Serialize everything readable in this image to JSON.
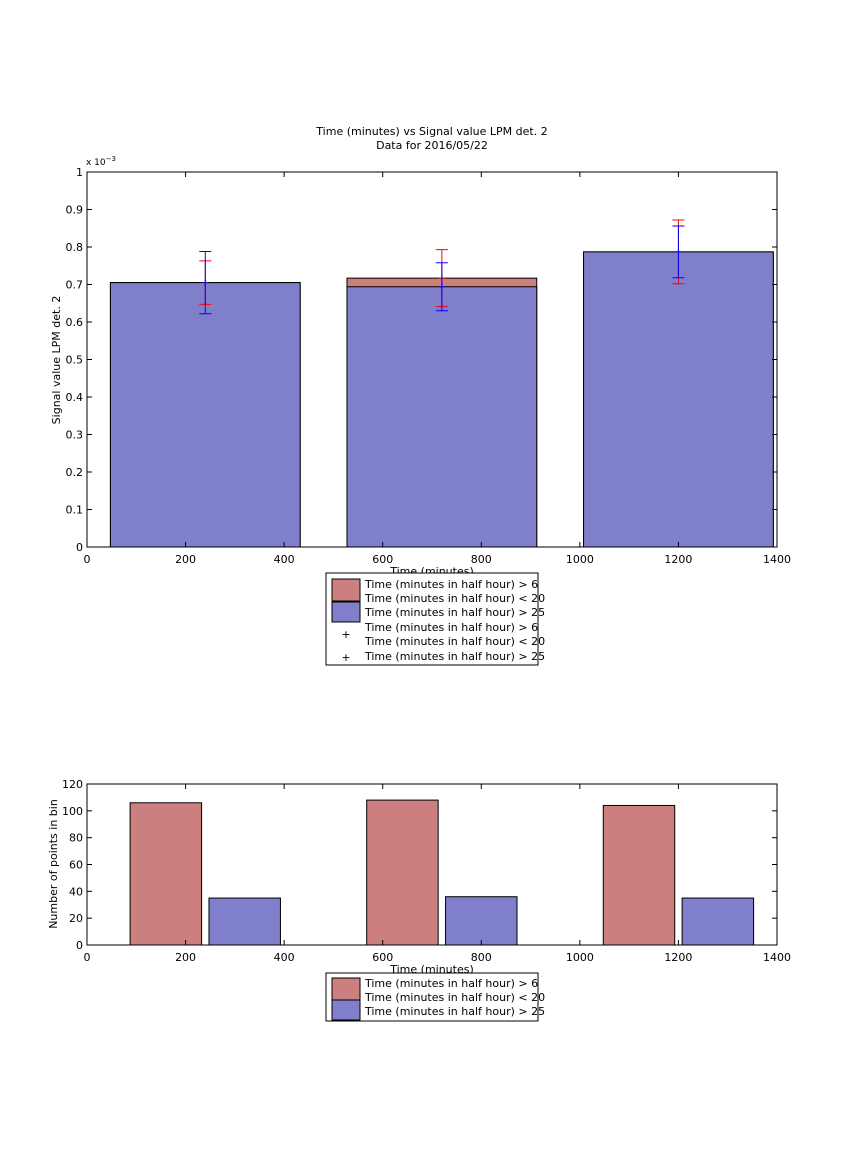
{
  "chart_data": [
    {
      "type": "bar",
      "title": "Time (minutes) vs Signal value LPM det. 2",
      "subtitle": "Data for 2016/05/22",
      "xlabel": "Time (minutes)",
      "ylabel": "Signal value LPM det. 2",
      "y_multiplier": "x 10",
      "y_exponent": "−3",
      "xlim": [
        0,
        1400
      ],
      "ylim": [
        0,
        1
      ],
      "xticks": [
        0,
        200,
        400,
        600,
        800,
        1000,
        1200,
        1400
      ],
      "yticks": [
        0,
        0.1,
        0.2,
        0.3,
        0.4,
        0.5,
        0.6,
        0.7,
        0.8,
        0.9,
        1
      ],
      "grid": false,
      "legend_position": "below",
      "x": [
        240,
        720,
        1200
      ],
      "bin_width": 385,
      "series": [
        {
          "name": "Time (minutes in half hour) > 6\nTime (minutes in half hour) < 20",
          "color": "#cc7f7f",
          "values": [
            0.705,
            0.717,
            0.787
          ],
          "errors": [
            0.058,
            0.076,
            0.085
          ]
        },
        {
          "name": "Time (minutes in half hour) > 25",
          "color": "#7f7fcc",
          "values": [
            0.705,
            0.694,
            0.787
          ],
          "errors": [
            0.083,
            0.064,
            0.069
          ]
        }
      ],
      "errorbar_legend": [
        {
          "name": "Time (minutes in half hour) > 6\nTime (minutes in half hour) < 20",
          "color": "#ff0000",
          "marker": "+"
        },
        {
          "name": "Time (minutes in half hour) > 25",
          "color": "#0000ff",
          "marker": "+"
        }
      ]
    },
    {
      "type": "bar",
      "xlabel": "Time (minutes)",
      "ylabel": "Number of points in bin",
      "xlim": [
        0,
        1400
      ],
      "ylim": [
        0,
        120
      ],
      "xticks": [
        0,
        200,
        400,
        600,
        800,
        1000,
        1200,
        1400
      ],
      "yticks": [
        0,
        20,
        40,
        60,
        80,
        100,
        120
      ],
      "grid": false,
      "legend_position": "below",
      "bin_width": 145,
      "series": [
        {
          "name": "Time (minutes in half hour) > 6\nTime (minutes in half hour) < 20",
          "color": "#cc7f7f",
          "x": [
            160,
            640,
            1120
          ],
          "values": [
            106,
            108,
            104
          ]
        },
        {
          "name": "Time (minutes in half hour) > 25",
          "color": "#7f7fcc",
          "x": [
            320,
            800,
            1280
          ],
          "values": [
            35,
            36,
            35
          ]
        }
      ]
    }
  ]
}
